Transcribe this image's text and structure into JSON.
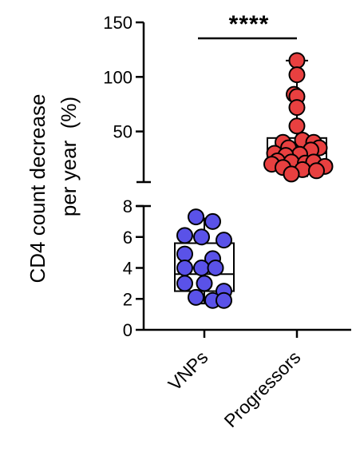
{
  "chart_data": {
    "type": "scatter",
    "subtype": "box-and-dot plot with broken y-axis",
    "ylabel_line1": "CD4 count decrease",
    "ylabel_line2": "per year  (%)",
    "categories": [
      "VNPs",
      "Progressors"
    ],
    "y_axis_segments": [
      {
        "range": [
          0,
          8
        ],
        "ticks": [
          0,
          2,
          4,
          6,
          8
        ]
      },
      {
        "range": [
          8,
          150
        ],
        "ticks": [
          50,
          100,
          150
        ]
      }
    ],
    "significance": {
      "label": "****",
      "between": [
        "VNPs",
        "Progressors"
      ]
    },
    "series": [
      {
        "category": "VNPs",
        "color": "#5a52e8",
        "box": {
          "min": 1.7,
          "q1": 2.5,
          "median": 3.6,
          "q3": 5.6,
          "max": 7.2
        },
        "points": [
          {
            "dx": -0.15,
            "y": 7.3
          },
          {
            "dx": 0.15,
            "y": 7.0
          },
          {
            "dx": -0.35,
            "y": 6.1
          },
          {
            "dx": -0.05,
            "y": 6.0
          },
          {
            "dx": 0.35,
            "y": 5.8
          },
          {
            "dx": -0.35,
            "y": 4.9
          },
          {
            "dx": 0.15,
            "y": 4.6
          },
          {
            "dx": -0.35,
            "y": 4.0
          },
          {
            "dx": -0.05,
            "y": 4.0
          },
          {
            "dx": 0.2,
            "y": 4.0
          },
          {
            "dx": -0.35,
            "y": 3.0
          },
          {
            "dx": 0.0,
            "y": 3.0
          },
          {
            "dx": 0.35,
            "y": 2.5
          },
          {
            "dx": -0.15,
            "y": 2.1
          },
          {
            "dx": 0.15,
            "y": 1.9
          },
          {
            "dx": 0.35,
            "y": 1.9
          }
        ]
      },
      {
        "category": "Progressors",
        "color": "#e84040",
        "box": {
          "min": 9,
          "q1": 22,
          "median": 30,
          "q3": 44,
          "max": 115
        },
        "points": [
          {
            "dx": 0.0,
            "y": 115
          },
          {
            "dx": 0.0,
            "y": 102
          },
          {
            "dx": -0.05,
            "y": 84
          },
          {
            "dx": 0.0,
            "y": 82
          },
          {
            "dx": 0.0,
            "y": 72
          },
          {
            "dx": 0.0,
            "y": 55
          },
          {
            "dx": 0.1,
            "y": 42
          },
          {
            "dx": -0.25,
            "y": 40
          },
          {
            "dx": 0.3,
            "y": 40
          },
          {
            "dx": -0.15,
            "y": 35
          },
          {
            "dx": 0.4,
            "y": 35
          },
          {
            "dx": 0.25,
            "y": 33
          },
          {
            "dx": -0.4,
            "y": 30
          },
          {
            "dx": 0.05,
            "y": 29
          },
          {
            "dx": -0.2,
            "y": 28
          },
          {
            "dx": -0.35,
            "y": 23
          },
          {
            "dx": -0.1,
            "y": 22
          },
          {
            "dx": 0.15,
            "y": 21
          },
          {
            "dx": 0.3,
            "y": 22
          },
          {
            "dx": -0.45,
            "y": 20
          },
          {
            "dx": 0.5,
            "y": 18
          },
          {
            "dx": -0.25,
            "y": 17
          },
          {
            "dx": 0.1,
            "y": 15
          },
          {
            "dx": 0.35,
            "y": 14
          },
          {
            "dx": -0.1,
            "y": 11
          }
        ]
      }
    ]
  }
}
